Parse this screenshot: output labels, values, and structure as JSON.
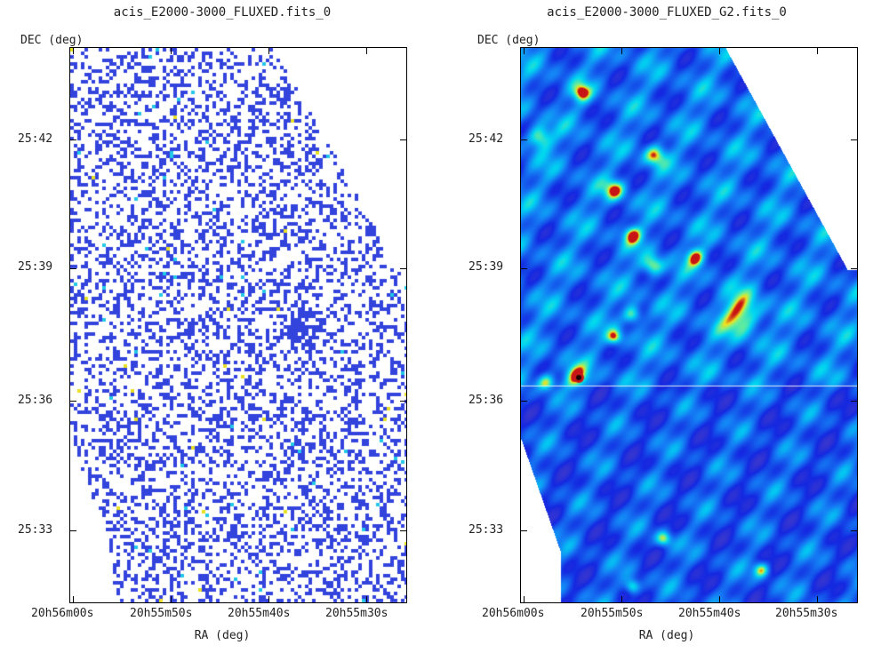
{
  "panels": [
    {
      "title": "acis_E2000-3000_FLUXED.fits_0",
      "dec_label": "DEC (deg)",
      "ra_label": "RA (deg)",
      "yticks": [
        "25:42",
        "25:39",
        "25:36",
        "25:33"
      ],
      "xticks": [
        "20h56m00s",
        "20h55m50s",
        "20h55m40s",
        "20h55m30s"
      ],
      "image_style": "sparse-pixel-map",
      "colors": {
        "background": "#ffffff",
        "main": "#3344dd",
        "bright": "#22c8e8",
        "hot": "#e8e020"
      }
    },
    {
      "title": "acis_E2000-3000_FLUXED_G2.fits_0",
      "dec_label": "DEC (deg)",
      "ra_label": "RA (deg)",
      "yticks": [
        "25:42",
        "25:39",
        "25:36",
        "25:33"
      ],
      "xticks": [
        "20h56m00s",
        "20h55m50s",
        "20h55m40s",
        "20h55m30s"
      ],
      "image_style": "smoothed-heatmap",
      "colors": {
        "background": "#ffffff",
        "low": "#1020c8",
        "mid": "#00d8f0",
        "high": "#f0e020",
        "peak": "#c01010"
      }
    }
  ]
}
